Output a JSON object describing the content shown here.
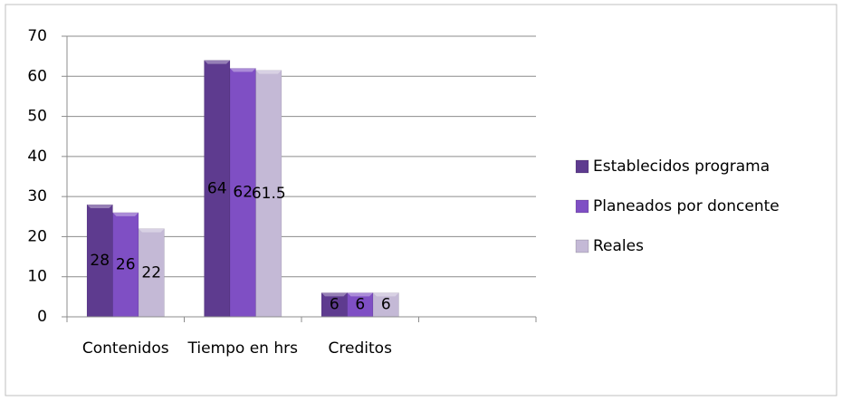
{
  "chart_data": {
    "type": "bar",
    "categories": [
      "Contenidos",
      "Tiempo en hrs",
      "Creditos",
      null
    ],
    "series": [
      {
        "name": "Establecidos programa",
        "color": "#5e3b8f",
        "values": [
          28,
          64,
          6,
          null
        ]
      },
      {
        "name": "Planeados por doncente",
        "color": "#7f4fc4",
        "values": [
          26,
          62,
          6,
          null
        ]
      },
      {
        "name": "Reales",
        "color": "#c4b9d6",
        "values": [
          22,
          61.5,
          6,
          null
        ]
      }
    ],
    "ylim": [
      0,
      70
    ],
    "yticks": [
      0,
      10,
      20,
      30,
      40,
      50,
      60,
      70
    ],
    "grid": true,
    "legend": "right",
    "data_labels": true
  }
}
